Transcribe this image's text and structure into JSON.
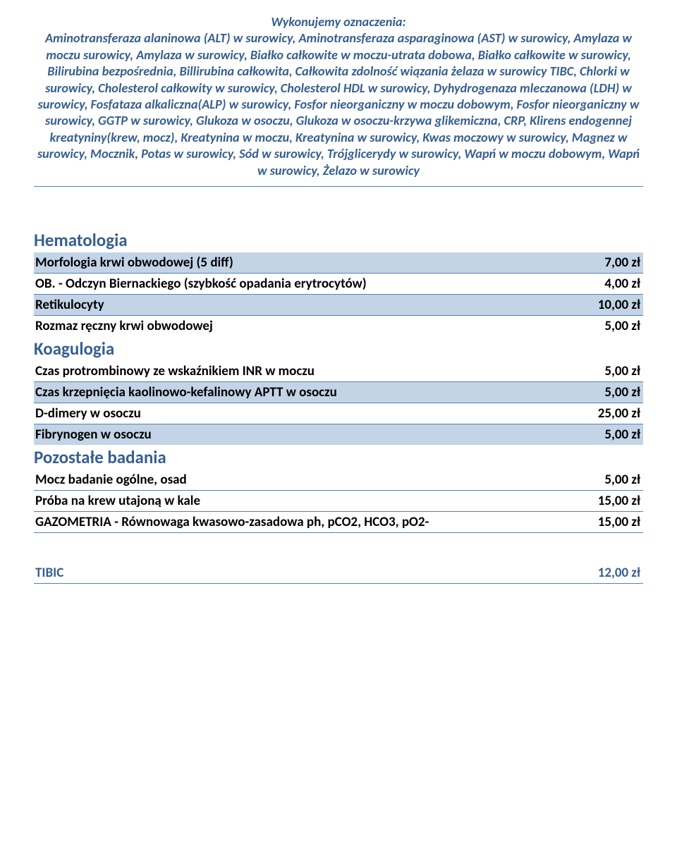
{
  "colors": {
    "heading": "#365f91",
    "rule": "#4f81bd",
    "shade": "#c3d4e6",
    "text": "#000000",
    "bg": "#ffffff"
  },
  "intro": {
    "title": "Wykonujemy oznaczenia:",
    "body": "Aminotransferaza alaninowa (ALT) w surowicy, Aminotransferaza asparaginowa (AST) w surowicy, Amylaza w moczu surowicy, Amylaza w surowicy, Białko całkowite w moczu-utrata dobowa, Białko całkowite w surowicy, Bilirubina bezpośrednia, Billirubina całkowita, Całkowita zdolność wiązania żelaza w surowicy TIBC, Chlorki w surowicy, Cholesterol całkowity w surowicy, Cholesterol HDL w surowicy, Dyhydrogenaza mleczanowa (LDH) w surowicy, Fosfataza alkaliczna(ALP) w surowicy, Fosfor nieorganiczny w moczu dobowym, Fosfor nieorganiczny w surowicy, GGTP w surowicy, Glukoza w osoczu, Glukoza w osoczu-krzywa glikemiczna, CRP, Klirens endogennej kreatyniny(krew, mocz), Kreatynina w moczu, Kreatynina w surowicy, Kwas moczowy w surowicy, Magnez w surowicy, Mocznik, Potas w surowicy, Sód w surowicy, Trójglicerydy w surowicy, Wapń w moczu dobowym, Wapń w surowicy, Żelazo w surowicy"
  },
  "sections": {
    "hematologia": {
      "title": "Hematologia",
      "rows": [
        {
          "label": "Morfologia krwi obwodowej (5 diff)",
          "price": "7,00 zł",
          "shaded": true
        },
        {
          "label": "OB. - Odczyn Biernackiego (szybkość opadania erytrocytów)",
          "price": "4,00 zł",
          "shaded": false
        },
        {
          "label": "Retikulocyty",
          "price": "10,00 zł",
          "shaded": true
        },
        {
          "label": "Rozmaz ręczny krwi obwodowej",
          "price": "5,00 zł",
          "shaded": false
        }
      ]
    },
    "koagulogia": {
      "title": "Koagulogia",
      "rows": [
        {
          "label": "Czas protrombinowy ze wskaźnikiem INR w moczu",
          "price": "5,00 zł",
          "shaded": false
        },
        {
          "label": "Czas krzepnięcia kaolinowo-kefalinowy APTT w osoczu",
          "price": "5,00 zł",
          "shaded": true
        },
        {
          "label": "D-dimery w osoczu",
          "price": "25,00 zł",
          "shaded": false
        },
        {
          "label": "Fibrynogen w osoczu",
          "price": "5,00 zł",
          "shaded": true
        }
      ]
    },
    "pozostale": {
      "title": "Pozostałe badania",
      "rows": [
        {
          "label": "Mocz badanie ogólne, osad",
          "price": "5,00 zł",
          "shaded": false
        },
        {
          "label": "Próba na krew utajoną w kale",
          "price": "15,00 zł",
          "shaded": false
        },
        {
          "label": "GAZOMETRIA - Równowaga kwasowo-zasadowa ph, pCO2, HCO3, pO2-",
          "price": "15,00 zł",
          "shaded": false
        }
      ]
    }
  },
  "tibic": {
    "label": "TIBIC",
    "price": "12,00 zł"
  }
}
